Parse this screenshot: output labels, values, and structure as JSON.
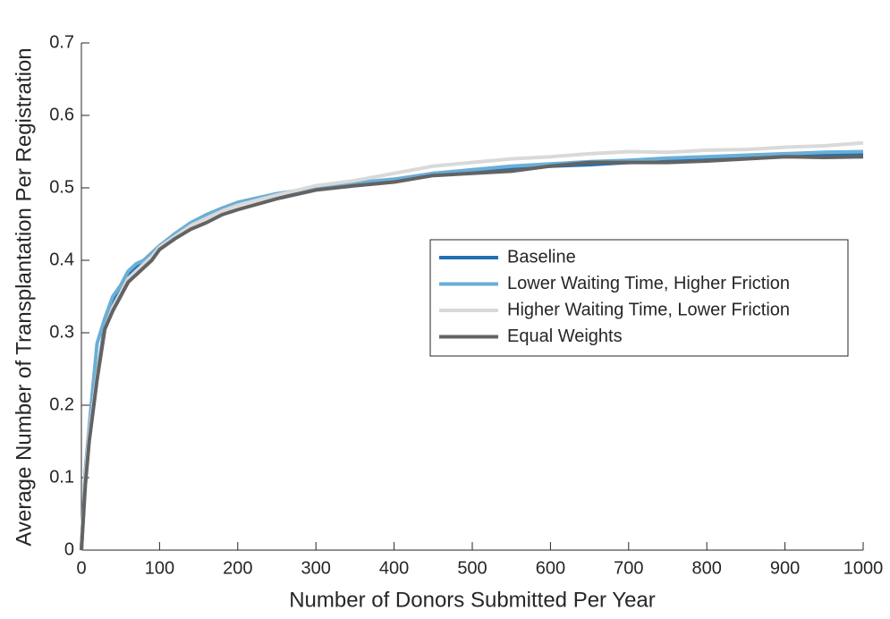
{
  "chart_data": {
    "type": "line",
    "xlabel": "Number of Donors Submitted Per Year",
    "ylabel": "Average Number of Transplantation Per Registration",
    "x": [
      0,
      5,
      10,
      20,
      30,
      40,
      50,
      60,
      70,
      80,
      90,
      100,
      120,
      140,
      160,
      180,
      200,
      250,
      300,
      350,
      400,
      450,
      500,
      550,
      600,
      650,
      700,
      750,
      800,
      850,
      900,
      950,
      1000
    ],
    "series": [
      {
        "name": "Baseline",
        "color": "#2171b5",
        "values": [
          0,
          0.1,
          0.16,
          0.24,
          0.31,
          0.34,
          0.36,
          0.38,
          0.39,
          0.4,
          0.41,
          0.42,
          0.435,
          0.45,
          0.46,
          0.47,
          0.478,
          0.49,
          0.5,
          0.505,
          0.51,
          0.52,
          0.522,
          0.527,
          0.53,
          0.532,
          0.535,
          0.538,
          0.54,
          0.542,
          0.544,
          0.545,
          0.546
        ]
      },
      {
        "name": "Lower Waiting Time, Higher Friction",
        "color": "#6baed6",
        "values": [
          0,
          0.11,
          0.17,
          0.285,
          0.32,
          0.35,
          0.365,
          0.385,
          0.395,
          0.4,
          0.41,
          0.42,
          0.437,
          0.452,
          0.463,
          0.472,
          0.48,
          0.492,
          0.5,
          0.507,
          0.512,
          0.52,
          0.525,
          0.53,
          0.533,
          0.536,
          0.538,
          0.541,
          0.543,
          0.545,
          0.547,
          0.549,
          0.55
        ]
      },
      {
        "name": "Higher Waiting Time, Lower Friction",
        "color": "#d9d9d9",
        "values": [
          0,
          0.1,
          0.16,
          0.24,
          0.305,
          0.335,
          0.355,
          0.375,
          0.385,
          0.395,
          0.405,
          0.418,
          0.433,
          0.448,
          0.458,
          0.468,
          0.476,
          0.49,
          0.503,
          0.51,
          0.52,
          0.53,
          0.535,
          0.54,
          0.543,
          0.547,
          0.55,
          0.549,
          0.552,
          0.553,
          0.556,
          0.558,
          0.562
        ]
      },
      {
        "name": "Equal Weights",
        "color": "#636363",
        "values": [
          0,
          0.09,
          0.15,
          0.235,
          0.305,
          0.33,
          0.35,
          0.37,
          0.38,
          0.39,
          0.4,
          0.415,
          0.43,
          0.443,
          0.452,
          0.463,
          0.47,
          0.485,
          0.497,
          0.503,
          0.508,
          0.517,
          0.52,
          0.523,
          0.53,
          0.535,
          0.535,
          0.535,
          0.537,
          0.54,
          0.543,
          0.542,
          0.543
        ]
      }
    ],
    "xlim": [
      0,
      1000
    ],
    "xticks": [
      0,
      100,
      200,
      300,
      400,
      500,
      600,
      700,
      800,
      900,
      1000
    ],
    "ylim": [
      0,
      0.7
    ],
    "yticks": [
      0,
      0.1,
      0.2,
      0.3,
      0.4,
      0.5,
      0.6,
      0.7
    ],
    "legend": "right"
  }
}
